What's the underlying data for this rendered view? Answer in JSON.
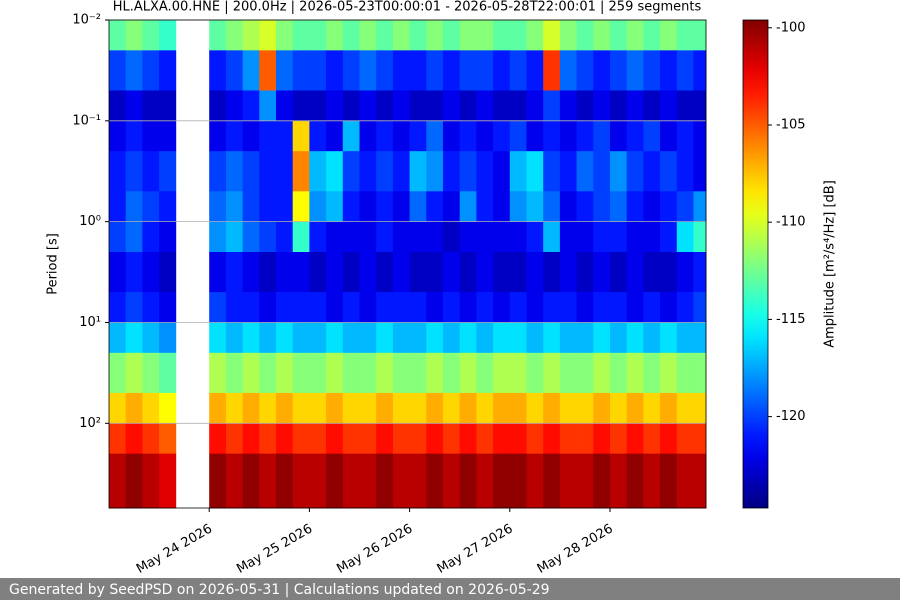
{
  "chart_data": {
    "type": "heatmap",
    "title": "HL.ALXA.00.HNE | 200.0Hz | 2026-05-23T00:00:01 - 2026-05-28T22:00:01 | 259 segments",
    "y_label": "Period [s]",
    "colorbar_label": "Amplitude [m²/s⁴/Hz] [dB]",
    "colormap": "jet",
    "y_log": true,
    "y_inverted": true,
    "grid": true,
    "xlim": [
      "2026-05-23T00:00",
      "2026-05-28T23:00"
    ],
    "xticks": [
      {
        "value": "2026-05-24",
        "label": "May 24 2026"
      },
      {
        "value": "2026-05-25",
        "label": "May 25 2026"
      },
      {
        "value": "2026-05-26",
        "label": "May 26 2026"
      },
      {
        "value": "2026-05-27",
        "label": "May 27 2026"
      },
      {
        "value": "2026-05-28",
        "label": "May 28 2026"
      }
    ],
    "ylim": [
      0.01,
      692
    ],
    "yticks": [
      {
        "value": 0.01,
        "label": "10⁻²"
      },
      {
        "value": 0.1,
        "label": "10⁻¹"
      },
      {
        "value": 1,
        "label": "10⁰"
      },
      {
        "value": 10,
        "label": "10¹"
      },
      {
        "value": 100,
        "label": "10²"
      }
    ],
    "clim": [
      -124.7,
      -99.6
    ],
    "cticks": [
      -100,
      -105,
      -110,
      -115,
      -120
    ],
    "x": [
      "2026-05-23T00:00",
      "2026-05-23T04:00",
      "2026-05-23T08:00",
      "2026-05-23T12:00",
      "2026-05-23T16:00",
      "2026-05-23T20:00",
      "2026-05-24T00:00",
      "2026-05-24T04:00",
      "2026-05-24T08:00",
      "2026-05-24T12:00",
      "2026-05-24T16:00",
      "2026-05-24T20:00",
      "2026-05-25T00:00",
      "2026-05-25T04:00",
      "2026-05-25T08:00",
      "2026-05-25T12:00",
      "2026-05-25T16:00",
      "2026-05-25T20:00",
      "2026-05-26T00:00",
      "2026-05-26T04:00",
      "2026-05-26T08:00",
      "2026-05-26T12:00",
      "2026-05-26T16:00",
      "2026-05-26T20:00",
      "2026-05-27T00:00",
      "2026-05-27T04:00",
      "2026-05-27T08:00",
      "2026-05-27T12:00",
      "2026-05-27T16:00",
      "2026-05-27T20:00",
      "2026-05-28T00:00",
      "2026-05-28T04:00",
      "2026-05-28T08:00",
      "2026-05-28T12:00",
      "2026-05-28T16:00",
      "2026-05-28T20:00"
    ],
    "y_edges": [
      0.01,
      0.02,
      0.05,
      0.1,
      0.2,
      0.5,
      1,
      2,
      5,
      10,
      20,
      50,
      100,
      200,
      692
    ],
    "z": [
      [
        -113,
        -112,
        -113,
        -114,
        null,
        null,
        -113,
        -112,
        -111,
        -110,
        -112,
        -113,
        -113,
        -112,
        -113,
        -112,
        -113,
        -112,
        -113,
        -112,
        -113,
        -112,
        -112,
        -113,
        -113,
        -112,
        -110,
        -112,
        -113,
        -112,
        -113,
        -112,
        -113,
        -112,
        -113,
        -113
      ],
      [
        -120,
        -119,
        -120,
        -121,
        null,
        null,
        -121,
        -120,
        -118,
        -105,
        -119,
        -120,
        -120,
        -121,
        -120,
        -119,
        -120,
        -121,
        -121,
        -120,
        -121,
        -120,
        -120,
        -121,
        -120,
        -121,
        -104,
        -119,
        -120,
        -121,
        -120,
        -119,
        -120,
        -121,
        -120,
        -121
      ],
      [
        -123,
        -122,
        -123,
        -123,
        null,
        null,
        -123,
        -122,
        -121,
        -118,
        -122,
        -123,
        -123,
        -122,
        -123,
        -122,
        -123,
        -122,
        -123,
        -123,
        -122,
        -123,
        -122,
        -123,
        -123,
        -122,
        -120,
        -122,
        -123,
        -122,
        -123,
        -122,
        -123,
        -122,
        -123,
        -123
      ],
      [
        -122,
        -121,
        -122,
        -122,
        null,
        null,
        -122,
        -121,
        -122,
        -121,
        -121,
        -108,
        -121,
        -122,
        -117,
        -122,
        -121,
        -122,
        -121,
        -119,
        -122,
        -121,
        -122,
        -121,
        -120,
        -122,
        -121,
        -122,
        -121,
        -120,
        -122,
        -121,
        -120,
        -122,
        -121,
        -122
      ],
      [
        -121,
        -120,
        -121,
        -120,
        null,
        null,
        -120,
        -119,
        -120,
        -121,
        -121,
        -106,
        -117,
        -116,
        -120,
        -121,
        -120,
        -121,
        -117,
        -118,
        -121,
        -120,
        -121,
        -122,
        -117,
        -116,
        -120,
        -121,
        -119,
        -120,
        -118,
        -120,
        -121,
        -120,
        -121,
        -122
      ],
      [
        -121,
        -119,
        -120,
        -121,
        null,
        null,
        -119,
        -118,
        -120,
        -121,
        -121,
        -109,
        -118,
        -117,
        -121,
        -122,
        -121,
        -122,
        -119,
        -121,
        -122,
        -118,
        -121,
        -122,
        -118,
        -117,
        -119,
        -122,
        -121,
        -120,
        -119,
        -121,
        -122,
        -121,
        -120,
        -118
      ],
      [
        -120,
        -119,
        -121,
        -122,
        null,
        null,
        -118,
        -117,
        -119,
        -120,
        -121,
        -114,
        -121,
        -122,
        -122,
        -122,
        -121,
        -122,
        -122,
        -122,
        -123,
        -122,
        -122,
        -122,
        -122,
        -121,
        -117,
        -122,
        -122,
        -121,
        -121,
        -122,
        -122,
        -121,
        -116,
        -114
      ],
      [
        -122,
        -121,
        -122,
        -123,
        null,
        null,
        -122,
        -121,
        -122,
        -123,
        -122,
        -122,
        -123,
        -122,
        -123,
        -122,
        -123,
        -122,
        -123,
        -123,
        -122,
        -123,
        -122,
        -123,
        -123,
        -122,
        -123,
        -122,
        -123,
        -122,
        -123,
        -122,
        -123,
        -123,
        -122,
        -121
      ],
      [
        -121,
        -120,
        -121,
        -122,
        null,
        null,
        -120,
        -121,
        -121,
        -122,
        -121,
        -121,
        -121,
        -122,
        -121,
        -122,
        -121,
        -121,
        -121,
        -122,
        -121,
        -122,
        -121,
        -122,
        -121,
        -122,
        -121,
        -121,
        -122,
        -121,
        -121,
        -122,
        -121,
        -122,
        -121,
        -120
      ],
      [
        -117,
        -116,
        -117,
        -118,
        null,
        null,
        -116,
        -117,
        -116,
        -117,
        -116,
        -117,
        -117,
        -116,
        -117,
        -117,
        -116,
        -117,
        -117,
        -116,
        -117,
        -116,
        -117,
        -116,
        -116,
        -117,
        -116,
        -117,
        -117,
        -116,
        -117,
        -116,
        -117,
        -116,
        -117,
        -117
      ],
      [
        -112,
        -111,
        -112,
        -113,
        null,
        null,
        -111,
        -112,
        -111,
        -112,
        -111,
        -112,
        -112,
        -111,
        -112,
        -112,
        -111,
        -112,
        -112,
        -111,
        -112,
        -111,
        -112,
        -111,
        -111,
        -112,
        -111,
        -112,
        -112,
        -111,
        -112,
        -111,
        -112,
        -111,
        -112,
        -112
      ],
      [
        -108,
        -107,
        -108,
        -109,
        null,
        null,
        -107,
        -108,
        -107,
        -108,
        -107,
        -108,
        -108,
        -107,
        -108,
        -108,
        -107,
        -108,
        -108,
        -107,
        -108,
        -107,
        -108,
        -107,
        -107,
        -108,
        -107,
        -108,
        -108,
        -107,
        -108,
        -107,
        -108,
        -107,
        -108,
        -108
      ],
      [
        -104,
        -103,
        -104,
        -105,
        null,
        null,
        -103,
        -104,
        -103,
        -104,
        -103,
        -104,
        -104,
        -103,
        -104,
        -104,
        -103,
        -104,
        -104,
        -103,
        -104,
        -103,
        -104,
        -103,
        -103,
        -104,
        -103,
        -104,
        -104,
        -103,
        -104,
        -103,
        -104,
        -103,
        -104,
        -104
      ],
      [
        -101,
        -100,
        -101,
        -102,
        null,
        null,
        -100,
        -101,
        -100,
        -101,
        -100,
        -101,
        -101,
        -100,
        -101,
        -101,
        -100,
        -101,
        -101,
        -100,
        -101,
        -100,
        -101,
        -100,
        -100,
        -101,
        -100,
        -101,
        -101,
        -100,
        -101,
        -100,
        -101,
        -100,
        -101,
        -101
      ]
    ]
  },
  "footer": "Generated by SeedPSD on 2026-05-31 | Calculations updated on 2026-05-29"
}
